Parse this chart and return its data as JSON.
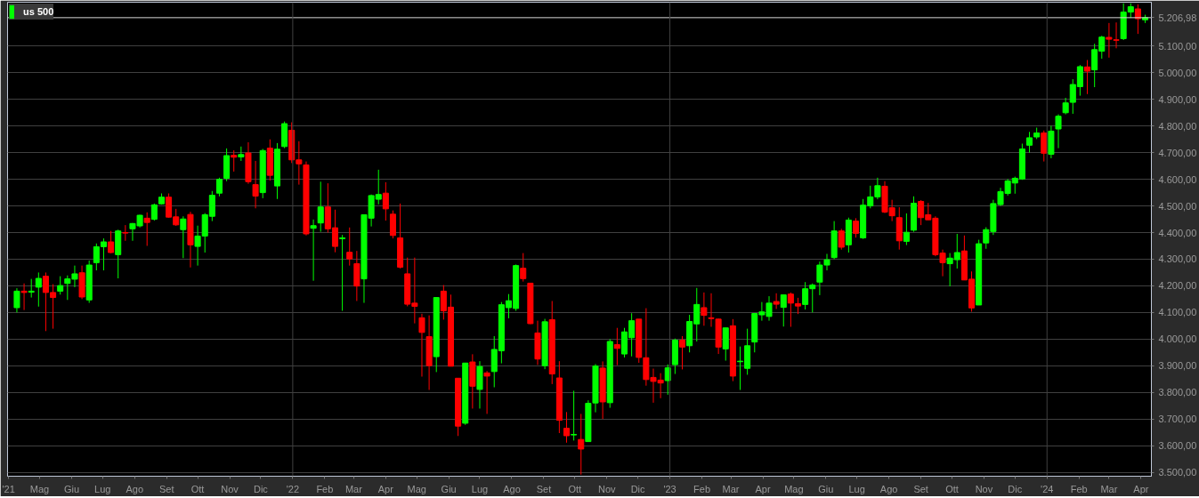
{
  "chart_data": {
    "type": "candlestick",
    "x": [
      "2021-04-09",
      "2021-04-16",
      "2021-04-23",
      "2021-04-30",
      "2021-05-07",
      "2021-05-14",
      "2021-05-21",
      "2021-05-28",
      "2021-06-04",
      "2021-06-11",
      "2021-06-18",
      "2021-06-25",
      "2021-07-02",
      "2021-07-09",
      "2021-07-16",
      "2021-07-23",
      "2021-07-30",
      "2021-08-06",
      "2021-08-13",
      "2021-08-20",
      "2021-08-27",
      "2021-09-03",
      "2021-09-10",
      "2021-09-17",
      "2021-09-24",
      "2021-10-01",
      "2021-10-08",
      "2021-10-15",
      "2021-10-22",
      "2021-10-29",
      "2021-11-05",
      "2021-11-12",
      "2021-11-19",
      "2021-11-26",
      "2021-12-03",
      "2021-12-10",
      "2021-12-17",
      "2021-12-24",
      "2021-12-31",
      "2022-01-07",
      "2022-01-14",
      "2022-01-21",
      "2022-01-28",
      "2022-02-04",
      "2022-02-11",
      "2022-02-18",
      "2022-02-25",
      "2022-03-04",
      "2022-03-11",
      "2022-03-18",
      "2022-03-25",
      "2022-04-01",
      "2022-04-08",
      "2022-04-15",
      "2022-04-22",
      "2022-04-29",
      "2022-05-06",
      "2022-05-13",
      "2022-05-20",
      "2022-05-27",
      "2022-06-03",
      "2022-06-10",
      "2022-06-17",
      "2022-06-24",
      "2022-07-01",
      "2022-07-08",
      "2022-07-15",
      "2022-07-22",
      "2022-07-29",
      "2022-08-05",
      "2022-08-12",
      "2022-08-19",
      "2022-08-26",
      "2022-09-02",
      "2022-09-09",
      "2022-09-16",
      "2022-09-23",
      "2022-09-30",
      "2022-10-07",
      "2022-10-14",
      "2022-10-21",
      "2022-10-28",
      "2022-11-04",
      "2022-11-11",
      "2022-11-18",
      "2022-11-25",
      "2022-12-02",
      "2022-12-09",
      "2022-12-16",
      "2022-12-23",
      "2022-12-30",
      "2023-01-06",
      "2023-01-13",
      "2023-01-20",
      "2023-01-27",
      "2023-02-03",
      "2023-02-10",
      "2023-02-17",
      "2023-02-24",
      "2023-03-03",
      "2023-03-10",
      "2023-03-17",
      "2023-03-24",
      "2023-03-31",
      "2023-04-07",
      "2023-04-14",
      "2023-04-21",
      "2023-04-28",
      "2023-05-05",
      "2023-05-12",
      "2023-05-19",
      "2023-05-26",
      "2023-06-02",
      "2023-06-09",
      "2023-06-16",
      "2023-06-23",
      "2023-06-30",
      "2023-07-07",
      "2023-07-14",
      "2023-07-21",
      "2023-07-28",
      "2023-08-04",
      "2023-08-11",
      "2023-08-18",
      "2023-08-25",
      "2023-09-01",
      "2023-09-08",
      "2023-09-15",
      "2023-09-22",
      "2023-09-29",
      "2023-10-06",
      "2023-10-13",
      "2023-10-20",
      "2023-10-27",
      "2023-11-03",
      "2023-11-10",
      "2023-11-17",
      "2023-11-24",
      "2023-12-01",
      "2023-12-08",
      "2023-12-15",
      "2023-12-22",
      "2023-12-29",
      "2024-01-05",
      "2024-01-12",
      "2024-01-19",
      "2024-01-26",
      "2024-02-02",
      "2024-02-09",
      "2024-02-16",
      "2024-02-23",
      "2024-03-01",
      "2024-03-08",
      "2024-03-15",
      "2024-03-22",
      "2024-03-29",
      "2024-04-05"
    ],
    "series": [
      {
        "name": "us 500",
        "colors": [
          "#00ff00",
          "#ff0000",
          "#00ff00",
          "#00ff00",
          "#ff0000",
          "#ff0000",
          "#00ff00",
          "#00ff00",
          "#00ff00",
          "#ff0000",
          "#00ff00",
          "#00ff00",
          "#00ff00",
          "#ff0000",
          "#00ff00",
          "#ff0000",
          "#00ff00",
          "#00ff00",
          "#ff0000",
          "#00ff00",
          "#00ff00",
          "#ff0000",
          "#ff0000",
          "#00ff00",
          "#ff0000",
          "#00ff00",
          "#00ff00",
          "#00ff00",
          "#00ff00",
          "#00ff00",
          "#ff0000",
          "#00ff00",
          "#ff0000",
          "#ff0000",
          "#00ff00",
          "#ff0000",
          "#00ff00",
          "#00ff00",
          "#ff0000",
          "#ff0000",
          "#ff0000",
          "#00ff00",
          "#00ff00",
          "#ff0000",
          "#ff0000",
          "#00ff00",
          "#ff0000",
          "#ff0000",
          "#00ff00",
          "#00ff00",
          "#00ff00",
          "#ff0000",
          "#ff0000",
          "#ff0000",
          "#ff0000",
          "#ff0000",
          "#ff0000",
          "#ff0000",
          "#00ff00",
          "#ff0000",
          "#ff0000",
          "#ff0000",
          "#00ff00",
          "#ff0000",
          "#00ff00",
          "#ff0000",
          "#00ff00",
          "#00ff00",
          "#00ff00",
          "#00ff00",
          "#ff0000",
          "#ff0000",
          "#ff0000",
          "#00ff00",
          "#ff0000",
          "#ff0000",
          "#ff0000",
          "#00ff00",
          "#ff0000",
          "#00ff00",
          "#00ff00",
          "#ff0000",
          "#00ff00",
          "#ff0000",
          "#00ff00",
          "#00ff00",
          "#ff0000",
          "#ff0000",
          "#ff0000",
          "#ff0000",
          "#00ff00",
          "#00ff00",
          "#ff0000",
          "#00ff00",
          "#00ff00",
          "#ff0000",
          "#ff0000",
          "#ff0000",
          "#00ff00",
          "#ff0000",
          "#00ff00",
          "#00ff00",
          "#00ff00",
          "#00ff00",
          "#00ff00",
          "#ff0000",
          "#00ff00",
          "#ff0000",
          "#ff0000",
          "#00ff00",
          "#00ff00",
          "#00ff00",
          "#00ff00",
          "#00ff00",
          "#ff0000",
          "#00ff00",
          "#ff0000",
          "#00ff00",
          "#00ff00",
          "#00ff00",
          "#ff0000",
          "#ff0000",
          "#ff0000",
          "#00ff00",
          "#00ff00",
          "#ff0000",
          "#ff0000",
          "#ff0000",
          "#ff0000",
          "#00ff00",
          "#00ff00",
          "#ff0000",
          "#ff0000",
          "#00ff00",
          "#00ff00",
          "#00ff00",
          "#00ff00",
          "#00ff00",
          "#00ff00",
          "#00ff00",
          "#00ff00",
          "#00ff00",
          "#ff0000",
          "#00ff00",
          "#00ff00",
          "#00ff00",
          "#00ff00",
          "#00ff00",
          "#ff0000",
          "#00ff00",
          "#00ff00",
          "#ff0000",
          "#ff0000",
          "#00ff00",
          "#00ff00",
          "#ff0000",
          "#00ff00"
        ],
        "ohlc": [
          [
            4118,
            4191,
            4100,
            4180
          ],
          [
            4180,
            4209,
            4109,
            4175
          ],
          [
            4176,
            4226,
            4156,
            4180
          ],
          [
            4195,
            4250,
            4122,
            4228
          ],
          [
            4236,
            4250,
            4030,
            4175
          ],
          [
            4175,
            4206,
            4039,
            4156
          ],
          [
            4180,
            4236,
            4167,
            4201
          ],
          [
            4209,
            4239,
            4147,
            4226
          ],
          [
            4225,
            4276,
            4195,
            4245
          ],
          [
            4249,
            4276,
            4150,
            4158
          ],
          [
            4147,
            4295,
            4136,
            4278
          ],
          [
            4287,
            4359,
            4258,
            4347
          ],
          [
            4347,
            4378,
            4258,
            4365
          ],
          [
            4365,
            4406,
            4322,
            4325
          ],
          [
            4317,
            4411,
            4228,
            4406
          ],
          [
            4400,
            4428,
            4369,
            4398
          ],
          [
            4414,
            4436,
            4369,
            4434
          ],
          [
            4425,
            4467,
            4419,
            4465
          ],
          [
            4454,
            4476,
            4350,
            4438
          ],
          [
            4450,
            4509,
            4445,
            4504
          ],
          [
            4508,
            4547,
            4505,
            4533
          ],
          [
            4533,
            4547,
            4456,
            4458
          ],
          [
            4459,
            4489,
            4425,
            4429
          ],
          [
            4411,
            4461,
            4304,
            4451
          ],
          [
            4468,
            4478,
            4269,
            4354
          ],
          [
            4348,
            4426,
            4276,
            4387
          ],
          [
            4387,
            4473,
            4325,
            4467
          ],
          [
            4461,
            4556,
            4443,
            4540
          ],
          [
            4548,
            4606,
            4536,
            4600
          ],
          [
            4604,
            4716,
            4593,
            4689
          ],
          [
            4690,
            4709,
            4629,
            4683
          ],
          [
            4684,
            4723,
            4669,
            4693
          ],
          [
            4699,
            4739,
            4583,
            4591
          ],
          [
            4580,
            4669,
            4491,
            4537
          ],
          [
            4550,
            4714,
            4529,
            4708
          ],
          [
            4717,
            4750,
            4595,
            4615
          ],
          [
            4575,
            4736,
            4526,
            4713
          ],
          [
            4723,
            4817,
            4717,
            4809
          ],
          [
            4784,
            4814,
            4661,
            4673
          ],
          [
            4673,
            4743,
            4580,
            4658
          ],
          [
            4654,
            4667,
            4389,
            4395
          ],
          [
            4416,
            4449,
            4219,
            4426
          ],
          [
            4436,
            4591,
            4403,
            4496
          ],
          [
            4496,
            4585,
            4400,
            4414
          ],
          [
            4418,
            4486,
            4326,
            4348
          ],
          [
            4377,
            4391,
            4106,
            4380
          ],
          [
            4326,
            4419,
            4276,
            4301
          ],
          [
            4283,
            4331,
            4143,
            4199
          ],
          [
            4226,
            4467,
            4136,
            4467
          ],
          [
            4454,
            4543,
            4423,
            4539
          ],
          [
            4525,
            4636,
            4506,
            4543
          ],
          [
            4548,
            4589,
            4445,
            4489
          ],
          [
            4469,
            4483,
            4378,
            4389
          ],
          [
            4380,
            4509,
            4265,
            4270
          ],
          [
            4245,
            4306,
            4123,
            4131
          ],
          [
            4135,
            4306,
            4059,
            4123
          ],
          [
            4080,
            4095,
            3859,
            4025
          ],
          [
            4009,
            4089,
            3809,
            3900
          ],
          [
            3934,
            4156,
            3876,
            4156
          ],
          [
            4180,
            4203,
            4073,
            4106
          ],
          [
            4120,
            4167,
            3898,
            3898
          ],
          [
            3853,
            3853,
            3636,
            3673
          ],
          [
            3684,
            3910,
            3678,
            3910
          ],
          [
            3914,
            3943,
            3739,
            3823
          ],
          [
            3811,
            3917,
            3739,
            3897
          ],
          [
            3873,
            3880,
            3719,
            3861
          ],
          [
            3878,
            4011,
            3819,
            3961
          ],
          [
            3956,
            4139,
            3909,
            4129
          ],
          [
            4118,
            4169,
            4078,
            4144
          ],
          [
            4115,
            4280,
            4106,
            4276
          ],
          [
            4266,
            4323,
            4216,
            4227
          ],
          [
            4210,
            4210,
            4056,
            4058
          ],
          [
            4023,
            4069,
            3903,
            3925
          ],
          [
            3900,
            4076,
            3887,
            4065
          ],
          [
            4073,
            4143,
            3831,
            3869
          ],
          [
            3854,
            3917,
            3647,
            3695
          ],
          [
            3665,
            3726,
            3611,
            3637
          ],
          [
            3640,
            3806,
            3619,
            3642
          ],
          [
            3623,
            3719,
            3491,
            3587
          ],
          [
            3615,
            3770,
            3615,
            3759
          ],
          [
            3760,
            3906,
            3725,
            3899
          ],
          [
            3891,
            3916,
            3700,
            3764
          ],
          [
            3761,
            4000,
            3742,
            3991
          ],
          [
            3979,
            4042,
            3902,
            3965
          ],
          [
            3944,
            4042,
            3931,
            4027
          ],
          [
            4005,
            4097,
            3935,
            4069
          ],
          [
            4075,
            4075,
            3911,
            3931
          ],
          [
            3930,
            4116,
            3825,
            3848
          ],
          [
            3856,
            3889,
            3761,
            3841
          ],
          [
            3846,
            3872,
            3778,
            3835
          ],
          [
            3844,
            3905,
            3791,
            3892
          ],
          [
            3904,
            4002,
            3869,
            3996
          ],
          [
            3996,
            4011,
            3886,
            3970
          ],
          [
            3975,
            4091,
            3950,
            4066
          ],
          [
            4057,
            4192,
            3991,
            4130
          ],
          [
            4118,
            4175,
            4050,
            4089
          ],
          [
            4080,
            4172,
            4046,
            4077
          ],
          [
            4075,
            4077,
            3944,
            3970
          ],
          [
            3963,
            4042,
            3919,
            4042
          ],
          [
            4050,
            4075,
            3842,
            3861
          ],
          [
            3915,
            3972,
            3809,
            3917
          ],
          [
            3890,
            4039,
            3866,
            3975
          ],
          [
            3989,
            4096,
            3950,
            4096
          ],
          [
            4091,
            4139,
            4069,
            4102
          ],
          [
            4085,
            4161,
            4069,
            4135
          ],
          [
            4141,
            4172,
            4113,
            4131
          ],
          [
            4119,
            4166,
            4047,
            4166
          ],
          [
            4169,
            4175,
            4046,
            4135
          ],
          [
            4133,
            4155,
            4094,
            4124
          ],
          [
            4130,
            4214,
            4111,
            4189
          ],
          [
            4189,
            4209,
            4100,
            4203
          ],
          [
            4214,
            4291,
            4165,
            4278
          ],
          [
            4278,
            4320,
            4258,
            4298
          ],
          [
            4306,
            4443,
            4300,
            4406
          ],
          [
            4406,
            4414,
            4336,
            4345
          ],
          [
            4354,
            4456,
            4325,
            4447
          ],
          [
            4443,
            4454,
            4381,
            4397
          ],
          [
            4380,
            4526,
            4376,
            4503
          ],
          [
            4500,
            4576,
            4491,
            4534
          ],
          [
            4534,
            4606,
            4525,
            4576
          ],
          [
            4574,
            4593,
            4473,
            4477
          ],
          [
            4493,
            4523,
            4443,
            4463
          ],
          [
            4456,
            4495,
            4336,
            4369
          ],
          [
            4367,
            4472,
            4353,
            4401
          ],
          [
            4409,
            4536,
            4403,
            4510
          ],
          [
            4517,
            4522,
            4428,
            4456
          ],
          [
            4467,
            4511,
            4448,
            4448
          ],
          [
            4454,
            4461,
            4311,
            4317
          ],
          [
            4323,
            4336,
            4236,
            4287
          ],
          [
            4283,
            4323,
            4198,
            4304
          ],
          [
            4298,
            4395,
            4265,
            4325
          ],
          [
            4331,
            4389,
            4222,
            4222
          ],
          [
            4225,
            4254,
            4103,
            4117
          ],
          [
            4128,
            4373,
            4128,
            4358
          ],
          [
            4361,
            4420,
            4339,
            4411
          ],
          [
            4404,
            4523,
            4391,
            4509
          ],
          [
            4505,
            4568,
            4500,
            4554
          ],
          [
            4547,
            4601,
            4539,
            4594
          ],
          [
            4586,
            4610,
            4546,
            4604
          ],
          [
            4601,
            4734,
            4598,
            4714
          ],
          [
            4728,
            4778,
            4700,
            4756
          ],
          [
            4759,
            4794,
            4751,
            4774
          ],
          [
            4774,
            4783,
            4667,
            4698
          ],
          [
            4694,
            4801,
            4679,
            4781
          ],
          [
            4789,
            4844,
            4717,
            4837
          ],
          [
            4850,
            4906,
            4844,
            4887
          ],
          [
            4889,
            4976,
            4846,
            4956
          ],
          [
            4948,
            5029,
            4914,
            5023
          ],
          [
            5022,
            5048,
            4920,
            5006
          ],
          [
            5011,
            5109,
            4946,
            5087
          ],
          [
            5081,
            5139,
            5053,
            5134
          ],
          [
            5133,
            5187,
            5057,
            5126
          ],
          [
            5124,
            5189,
            5092,
            5122
          ],
          [
            5128,
            5261,
            5123,
            5228
          ],
          [
            5228,
            5261,
            5206,
            5248
          ],
          [
            5240,
            5257,
            5146,
            5203
          ],
          [
            5199,
            5218,
            5187,
            5207
          ]
        ]
      }
    ],
    "xlim": [
      "2021-03-31",
      "2024-04-11"
    ],
    "xticks": [
      {
        "value": "2021-04-01",
        "label": "'21"
      },
      {
        "value": "2021-05-01",
        "label": "Mag"
      },
      {
        "value": "2021-06-01",
        "label": "Giu"
      },
      {
        "value": "2021-07-01",
        "label": "Lug"
      },
      {
        "value": "2021-08-01",
        "label": "Ago"
      },
      {
        "value": "2021-09-01",
        "label": "Set"
      },
      {
        "value": "2021-10-01",
        "label": "Ott"
      },
      {
        "value": "2021-11-01",
        "label": "Nov"
      },
      {
        "value": "2021-12-01",
        "label": "Dic"
      },
      {
        "value": "2022-01-01",
        "label": "'22"
      },
      {
        "value": "2022-02-01",
        "label": "Feb"
      },
      {
        "value": "2022-03-01",
        "label": "Mar"
      },
      {
        "value": "2022-04-01",
        "label": "Apr"
      },
      {
        "value": "2022-05-01",
        "label": "Mag"
      },
      {
        "value": "2022-06-01",
        "label": "Giu"
      },
      {
        "value": "2022-07-01",
        "label": "Lug"
      },
      {
        "value": "2022-08-01",
        "label": "Ago"
      },
      {
        "value": "2022-09-01",
        "label": "Set"
      },
      {
        "value": "2022-10-01",
        "label": "Ott"
      },
      {
        "value": "2022-11-01",
        "label": "Nov"
      },
      {
        "value": "2022-12-01",
        "label": "Dic"
      },
      {
        "value": "2023-01-01",
        "label": "'23"
      },
      {
        "value": "2023-02-01",
        "label": "Feb"
      },
      {
        "value": "2023-03-01",
        "label": "Mar"
      },
      {
        "value": "2023-04-01",
        "label": "Apr"
      },
      {
        "value": "2023-05-01",
        "label": "Mag"
      },
      {
        "value": "2023-06-01",
        "label": "Giu"
      },
      {
        "value": "2023-07-01",
        "label": "Lug"
      },
      {
        "value": "2023-08-01",
        "label": "Ago"
      },
      {
        "value": "2023-09-01",
        "label": "Set"
      },
      {
        "value": "2023-10-01",
        "label": "Ott"
      },
      {
        "value": "2023-11-01",
        "label": "Nov"
      },
      {
        "value": "2023-12-01",
        "label": "Dic"
      },
      {
        "value": "2024-01-01",
        "label": "'24"
      },
      {
        "value": "2024-02-01",
        "label": "Feb"
      },
      {
        "value": "2024-03-01",
        "label": "Mar"
      },
      {
        "value": "2024-04-01",
        "label": "Apr"
      }
    ],
    "ylim": [
      3485,
      5265
    ],
    "yticks": [
      {
        "value": 3500,
        "label": "3.500,00"
      },
      {
        "value": 3600,
        "label": "3.600,00"
      },
      {
        "value": 3700,
        "label": "3.700,00"
      },
      {
        "value": 3800,
        "label": "3.800,00"
      },
      {
        "value": 3900,
        "label": "3.900,00"
      },
      {
        "value": 4000,
        "label": "4.000,00"
      },
      {
        "value": 4100,
        "label": "4.100,00"
      },
      {
        "value": 4200,
        "label": "4.200,00"
      },
      {
        "value": 4300,
        "label": "4.300,00"
      },
      {
        "value": 4400,
        "label": "4.400,00"
      },
      {
        "value": 4500,
        "label": "4.500,00"
      },
      {
        "value": 4600,
        "label": "4.600,00"
      },
      {
        "value": 4700,
        "label": "4.700,00"
      },
      {
        "value": 4800,
        "label": "4.800,00"
      },
      {
        "value": 4900,
        "label": "4.900,00"
      },
      {
        "value": 5000,
        "label": "5.000,00"
      },
      {
        "value": 5100,
        "label": "5.100,00"
      }
    ],
    "ref_lines": [
      {
        "axis": "y",
        "value": 5206.98,
        "label": "5.206,98",
        "color": "#d8d8d8"
      },
      {
        "axis": "x",
        "value": "2022-01-01",
        "label": null,
        "color": "#404040"
      },
      {
        "axis": "x",
        "value": "2023-01-01",
        "label": null,
        "color": "#404040"
      },
      {
        "axis": "x",
        "value": "2024-01-01",
        "label": null,
        "color": "#404040"
      }
    ],
    "grid": "y",
    "legend": "top left"
  }
}
